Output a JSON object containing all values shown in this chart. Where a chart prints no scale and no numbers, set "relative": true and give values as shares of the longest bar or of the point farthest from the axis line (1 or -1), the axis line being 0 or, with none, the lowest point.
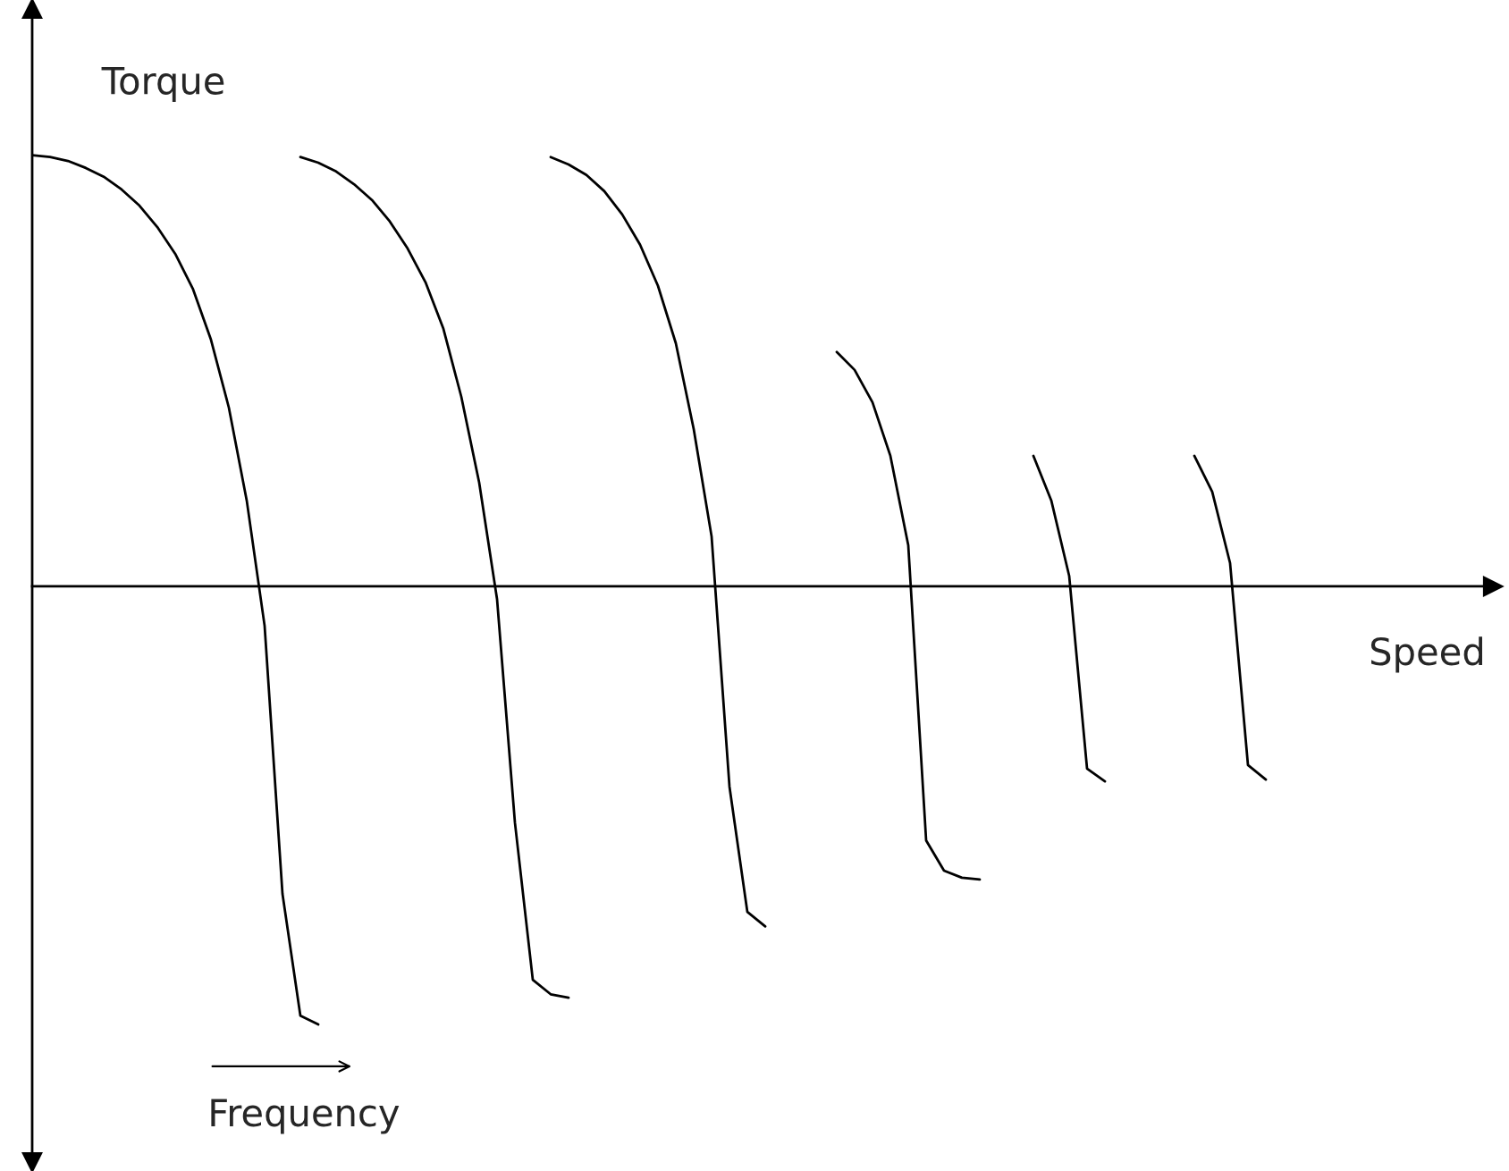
{
  "chart_data": {
    "type": "line",
    "relative": true,
    "xlabel": "Speed",
    "ylabel": "Torque",
    "annotations": [
      "Frequency"
    ],
    "legend": false,
    "marker": "none",
    "line_style": "solid",
    "categories": [
      null,
      null,
      null,
      null,
      null,
      null,
      null,
      null,
      null,
      null,
      null,
      null,
      null,
      null,
      null,
      null,
      null,
      null,
      null,
      null,
      null,
      null,
      null,
      null,
      null,
      null,
      null,
      null,
      null,
      null,
      null,
      null,
      null,
      null,
      null,
      null,
      null,
      null,
      null,
      null,
      null,
      null,
      null,
      null,
      null,
      null,
      null,
      null,
      null,
      null,
      null,
      null,
      null,
      null,
      null,
      null,
      null,
      null,
      null,
      null,
      null,
      null,
      null,
      null,
      null,
      null,
      null,
      null,
      null,
      null,
      null,
      null,
      null,
      null,
      null,
      null,
      null,
      null,
      null,
      null,
      null,
      null
    ],
    "series": [
      {
        "color": "#000000",
        "values": [
          0.984,
          0.98,
          0.971,
          0.955,
          0.935,
          0.906,
          0.869,
          0.82,
          0.759,
          0.678,
          0.563,
          0.408,
          0.196,
          -0.09,
          -0.702,
          -0.98,
          -1,
          null,
          null,
          null,
          null,
          null,
          null,
          null,
          null,
          null,
          null,
          null,
          null,
          null,
          null,
          null,
          null,
          null,
          null,
          null,
          null,
          null,
          null,
          null,
          null,
          null,
          null,
          null,
          null,
          null,
          null,
          null,
          null,
          null,
          null,
          null,
          null,
          null,
          null,
          null,
          null,
          null,
          null,
          null,
          null,
          null,
          null,
          null,
          null,
          null,
          null,
          null,
          null,
          null,
          null,
          null,
          null,
          null,
          null,
          null,
          null,
          null,
          null,
          null,
          null,
          null
        ]
      },
      {
        "color": "#000000",
        "values": [
          null,
          null,
          null,
          null,
          null,
          null,
          null,
          null,
          null,
          null,
          null,
          null,
          null,
          null,
          null,
          0.98,
          0.967,
          0.947,
          0.918,
          0.882,
          0.833,
          0.771,
          0.694,
          0.588,
          0.433,
          0.237,
          -0.029,
          -0.539,
          -0.898,
          -0.931,
          -0.939,
          null,
          null,
          null,
          null,
          null,
          null,
          null,
          null,
          null,
          null,
          null,
          null,
          null,
          null,
          null,
          null,
          null,
          null,
          null,
          null,
          null,
          null,
          null,
          null,
          null,
          null,
          null,
          null,
          null,
          null,
          null,
          null,
          null,
          null,
          null,
          null,
          null,
          null,
          null,
          null,
          null,
          null,
          null,
          null,
          null,
          null,
          null,
          null,
          null,
          null,
          null
        ]
      },
      {
        "color": "#000000",
        "values": [
          null,
          null,
          null,
          null,
          null,
          null,
          null,
          null,
          null,
          null,
          null,
          null,
          null,
          null,
          null,
          null,
          null,
          null,
          null,
          null,
          null,
          null,
          null,
          null,
          null,
          null,
          null,
          null,
          null,
          0.98,
          0.963,
          0.939,
          0.902,
          0.849,
          0.78,
          0.686,
          0.555,
          0.359,
          0.114,
          -0.457,
          -0.743,
          -0.776,
          null,
          null,
          null,
          null,
          null,
          null,
          null,
          null,
          null,
          null,
          null,
          null,
          null,
          null,
          null,
          null,
          null,
          null,
          null,
          null,
          null,
          null,
          null,
          null,
          null,
          null,
          null,
          null,
          null,
          null,
          null,
          null,
          null,
          null,
          null,
          null,
          null,
          null,
          null,
          null
        ]
      },
      {
        "color": "#000000",
        "values": [
          null,
          null,
          null,
          null,
          null,
          null,
          null,
          null,
          null,
          null,
          null,
          null,
          null,
          null,
          null,
          null,
          null,
          null,
          null,
          null,
          null,
          null,
          null,
          null,
          null,
          null,
          null,
          null,
          null,
          null,
          null,
          null,
          null,
          null,
          null,
          null,
          null,
          null,
          null,
          null,
          null,
          null,
          null,
          null,
          null,
          0.535,
          0.494,
          0.42,
          0.298,
          0.094,
          -0.58,
          -0.649,
          -0.665,
          -0.669,
          null,
          null,
          null,
          null,
          null,
          null,
          null,
          null,
          null,
          null,
          null,
          null,
          null,
          null,
          null,
          null,
          null,
          null,
          null,
          null,
          null,
          null,
          null,
          null,
          null,
          null,
          null,
          null
        ]
      },
      {
        "color": "#000000",
        "values": [
          null,
          null,
          null,
          null,
          null,
          null,
          null,
          null,
          null,
          null,
          null,
          null,
          null,
          null,
          null,
          null,
          null,
          null,
          null,
          null,
          null,
          null,
          null,
          null,
          null,
          null,
          null,
          null,
          null,
          null,
          null,
          null,
          null,
          null,
          null,
          null,
          null,
          null,
          null,
          null,
          null,
          null,
          null,
          null,
          null,
          null,
          null,
          null,
          null,
          null,
          null,
          null,
          null,
          null,
          null,
          null,
          0.298,
          0.196,
          0.024,
          -0.416,
          -0.445,
          null,
          null,
          null,
          null,
          null,
          null,
          null,
          null,
          null,
          null,
          null,
          null,
          null,
          null,
          null,
          null,
          null,
          null,
          null,
          null,
          null
        ]
      },
      {
        "color": "#000000",
        "values": [
          null,
          null,
          null,
          null,
          null,
          null,
          null,
          null,
          null,
          null,
          null,
          null,
          null,
          null,
          null,
          null,
          null,
          null,
          null,
          null,
          null,
          null,
          null,
          null,
          null,
          null,
          null,
          null,
          null,
          null,
          null,
          null,
          null,
          null,
          null,
          null,
          null,
          null,
          null,
          null,
          null,
          null,
          null,
          null,
          null,
          null,
          null,
          null,
          null,
          null,
          null,
          null,
          null,
          null,
          null,
          null,
          null,
          null,
          null,
          null,
          null,
          null,
          null,
          null,
          null,
          0.298,
          0.216,
          0.053,
          -0.408,
          -0.441,
          null,
          null,
          null,
          null,
          null,
          null,
          null,
          null,
          null,
          null,
          null,
          null
        ]
      }
    ]
  }
}
